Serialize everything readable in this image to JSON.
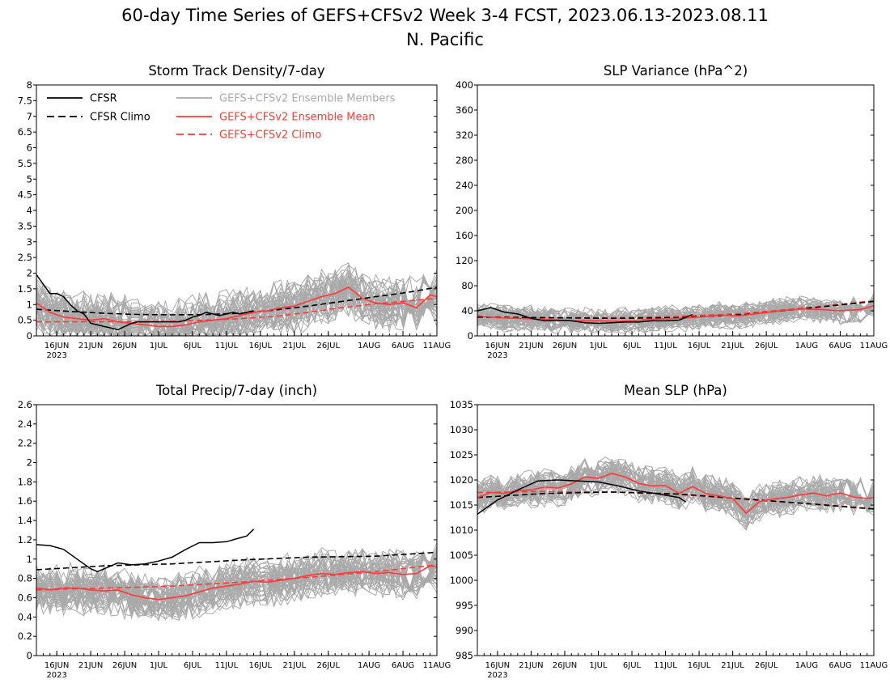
{
  "figure": {
    "title_line1": "60-day Time Series of GEFS+CFSv2 Week 3-4 FCST, 2023.06.13-2023.08.11",
    "title_line2": "N. Pacific",
    "colors": {
      "cfsr": "#000000",
      "members": "#a9a9a9",
      "ens_mean": "#ff3b3b",
      "gefs_climo": "#ff3b3b"
    }
  },
  "chart_data": [
    {
      "id": "storm",
      "type": "line",
      "title": "Storm Track Density/7-day",
      "xlabel": "",
      "ylabel": "",
      "x_range_days": [
        0,
        59
      ],
      "x_ticks": [
        {
          "day": 3,
          "label": "16JUN"
        },
        {
          "day": 8,
          "label": "21JUN"
        },
        {
          "day": 13,
          "label": "26JUN"
        },
        {
          "day": 18,
          "label": "1JUL"
        },
        {
          "day": 23,
          "label": "6JUL"
        },
        {
          "day": 28,
          "label": "11JUL"
        },
        {
          "day": 33,
          "label": "16JUL"
        },
        {
          "day": 38,
          "label": "21JUL"
        },
        {
          "day": 43,
          "label": "26JUL"
        },
        {
          "day": 49,
          "label": "1AUG"
        },
        {
          "day": 54,
          "label": "6AUG"
        },
        {
          "day": 59,
          "label": "11AUG"
        }
      ],
      "year_label": "2023",
      "ylim": [
        0,
        8
      ],
      "y_ticks": [
        0,
        0.5,
        1,
        1.5,
        2,
        2.5,
        3,
        3.5,
        4,
        4.5,
        5,
        5.5,
        6,
        6.5,
        7,
        7.5,
        8
      ],
      "legend": {
        "cfsr": "CFSR",
        "cfsr_climo": "CFSR Climo",
        "members": "GEFS+CFSv2 Ensemble Members",
        "ens_mean": "GEFS+CFSv2 Ensemble Mean",
        "gefs_climo": "GEFS+CFSv2 Climo"
      },
      "members_spread": {
        "count": 40,
        "center_from": "ens_mean",
        "spread": 0.75,
        "floor": 0
      },
      "series": [
        {
          "key": "cfsr",
          "name": "CFSR",
          "x": [
            0,
            1,
            2,
            3,
            4,
            5,
            6,
            7,
            8,
            9,
            10,
            11,
            12,
            13,
            14,
            15,
            16,
            17,
            18,
            19,
            20,
            21,
            22,
            23,
            24,
            25,
            26,
            27,
            28,
            29,
            30,
            31,
            32
          ],
          "values": [
            1.95,
            1.65,
            1.35,
            1.35,
            1.25,
            1.0,
            0.8,
            0.7,
            0.4,
            0.35,
            0.3,
            0.25,
            0.2,
            0.3,
            0.4,
            0.45,
            0.45,
            0.45,
            0.45,
            0.45,
            0.45,
            0.45,
            0.5,
            0.6,
            0.65,
            0.75,
            0.7,
            0.65,
            0.7,
            0.75,
            0.7,
            0.75,
            0.8
          ]
        },
        {
          "key": "cfsr_climo",
          "name": "CFSR Climo",
          "x": [
            0,
            5,
            10,
            15,
            20,
            25,
            30,
            35,
            40,
            45,
            50,
            55,
            59
          ],
          "values": [
            0.85,
            0.78,
            0.72,
            0.68,
            0.67,
            0.68,
            0.72,
            0.82,
            0.95,
            1.1,
            1.25,
            1.4,
            1.55
          ]
        },
        {
          "key": "ens_mean",
          "name": "GEFS+CFSv2 Ensemble Mean",
          "x": [
            0,
            2,
            4,
            6,
            8,
            10,
            12,
            14,
            16,
            18,
            20,
            22,
            24,
            26,
            28,
            30,
            32,
            34,
            36,
            38,
            40,
            42,
            44,
            46,
            48,
            50,
            52,
            54,
            56,
            58,
            59
          ],
          "values": [
            1.05,
            0.75,
            0.6,
            0.55,
            0.5,
            0.55,
            0.45,
            0.4,
            0.35,
            0.3,
            0.3,
            0.35,
            0.45,
            0.5,
            0.55,
            0.65,
            0.75,
            0.8,
            0.9,
            0.95,
            1.1,
            1.25,
            1.35,
            1.55,
            1.2,
            1.05,
            1.0,
            1.05,
            0.9,
            1.3,
            1.25
          ]
        },
        {
          "key": "gefs_climo",
          "name": "GEFS+CFSv2 Climo",
          "x": [
            0,
            5,
            10,
            15,
            20,
            25,
            30,
            35,
            40,
            45,
            50,
            55,
            59
          ],
          "values": [
            0.45,
            0.45,
            0.45,
            0.45,
            0.47,
            0.5,
            0.55,
            0.62,
            0.75,
            0.9,
            1.02,
            1.12,
            1.2
          ]
        }
      ]
    },
    {
      "id": "slpvar",
      "type": "line",
      "title": "SLP Variance (hPa^2)",
      "xlabel": "",
      "ylabel": "",
      "x_range_days": [
        0,
        59
      ],
      "x_ticks": [
        {
          "day": 3,
          "label": "16JUN"
        },
        {
          "day": 8,
          "label": "21JUN"
        },
        {
          "day": 13,
          "label": "26JUN"
        },
        {
          "day": 18,
          "label": "1JUL"
        },
        {
          "day": 23,
          "label": "6JUL"
        },
        {
          "day": 28,
          "label": "11JUL"
        },
        {
          "day": 33,
          "label": "16JUL"
        },
        {
          "day": 38,
          "label": "21JUL"
        },
        {
          "day": 43,
          "label": "26JUL"
        },
        {
          "day": 49,
          "label": "1AUG"
        },
        {
          "day": 54,
          "label": "6AUG"
        },
        {
          "day": 59,
          "label": "11AUG"
        }
      ],
      "year_label": "2023",
      "ylim": [
        0,
        400
      ],
      "y_ticks": [
        0,
        40,
        80,
        120,
        160,
        200,
        240,
        280,
        320,
        360,
        400
      ],
      "members_spread": {
        "count": 40,
        "center_from": "ens_mean",
        "spread": 18,
        "floor": 0
      },
      "series": [
        {
          "key": "cfsr",
          "name": "CFSR",
          "x": [
            0,
            2,
            4,
            6,
            8,
            10,
            12,
            14,
            16,
            18,
            20,
            22,
            24,
            26,
            28,
            30,
            32
          ],
          "values": [
            40,
            45,
            38,
            35,
            28,
            24,
            25,
            24,
            21,
            20,
            21,
            22,
            22,
            24,
            24,
            25,
            34
          ]
        },
        {
          "key": "cfsr_climo",
          "name": "CFSR Climo",
          "x": [
            0,
            10,
            20,
            30,
            40,
            50,
            59
          ],
          "values": [
            30,
            29,
            28,
            29,
            34,
            45,
            55
          ]
        },
        {
          "key": "ens_mean",
          "name": "GEFS+CFSv2 Ensemble Mean",
          "x": [
            0,
            3,
            6,
            9,
            12,
            15,
            18,
            21,
            24,
            27,
            30,
            33,
            36,
            39,
            42,
            45,
            48,
            51,
            54,
            57,
            59
          ],
          "values": [
            32,
            29,
            28,
            27,
            25,
            24,
            24,
            23,
            25,
            27,
            28,
            30,
            33,
            32,
            36,
            40,
            43,
            42,
            40,
            42,
            48
          ]
        },
        {
          "key": "gefs_climo",
          "name": "GEFS+CFSv2 Climo",
          "x": [
            0,
            10,
            20,
            30,
            40,
            50,
            59
          ],
          "values": [
            30,
            29,
            29,
            31,
            36,
            46,
            56
          ]
        }
      ]
    },
    {
      "id": "precip",
      "type": "line",
      "title": "Total Precip/7-day (inch)",
      "xlabel": "",
      "ylabel": "",
      "x_range_days": [
        0,
        59
      ],
      "x_ticks": [
        {
          "day": 3,
          "label": "16JUN"
        },
        {
          "day": 8,
          "label": "21JUN"
        },
        {
          "day": 13,
          "label": "26JUN"
        },
        {
          "day": 18,
          "label": "1JUL"
        },
        {
          "day": 23,
          "label": "6JUL"
        },
        {
          "day": 28,
          "label": "11JUL"
        },
        {
          "day": 33,
          "label": "16JUL"
        },
        {
          "day": 38,
          "label": "21JUL"
        },
        {
          "day": 43,
          "label": "26JUL"
        },
        {
          "day": 49,
          "label": "1AUG"
        },
        {
          "day": 54,
          "label": "6AUG"
        },
        {
          "day": 59,
          "label": "11AUG"
        }
      ],
      "year_label": "2023",
      "ylim": [
        0,
        2.6
      ],
      "y_ticks": [
        0,
        0.2,
        0.4,
        0.6,
        0.8,
        1,
        1.2,
        1.4,
        1.6,
        1.8,
        2,
        2.2,
        2.4,
        2.6
      ],
      "members_spread": {
        "count": 40,
        "center_from": "ens_mean",
        "spread": 0.22,
        "floor": 0
      },
      "series": [
        {
          "key": "cfsr",
          "name": "CFSR",
          "x": [
            0,
            2,
            4,
            6,
            8,
            9,
            10,
            12,
            14,
            16,
            18,
            20,
            22,
            24,
            26,
            28,
            30,
            31,
            32
          ],
          "values": [
            1.15,
            1.14,
            1.1,
            1.0,
            0.9,
            0.87,
            0.9,
            0.96,
            0.94,
            0.95,
            0.98,
            1.02,
            1.1,
            1.17,
            1.17,
            1.18,
            1.22,
            1.24,
            1.31
          ]
        },
        {
          "key": "cfsr_climo",
          "name": "CFSR Climo",
          "x": [
            0,
            10,
            20,
            30,
            40,
            50,
            59
          ],
          "values": [
            0.89,
            0.93,
            0.95,
            0.99,
            1.02,
            1.03,
            1.07
          ]
        },
        {
          "key": "ens_mean",
          "name": "GEFS+CFSv2 Ensemble Mean",
          "x": [
            0,
            2,
            4,
            6,
            8,
            10,
            12,
            14,
            16,
            18,
            20,
            22,
            24,
            26,
            28,
            30,
            32,
            34,
            36,
            38,
            40,
            42,
            44,
            46,
            48,
            50,
            52,
            54,
            56,
            58,
            59
          ],
          "values": [
            0.7,
            0.68,
            0.7,
            0.7,
            0.68,
            0.67,
            0.68,
            0.63,
            0.6,
            0.58,
            0.6,
            0.62,
            0.66,
            0.7,
            0.72,
            0.74,
            0.77,
            0.76,
            0.78,
            0.8,
            0.83,
            0.85,
            0.84,
            0.86,
            0.87,
            0.85,
            0.86,
            0.84,
            0.85,
            0.93,
            0.92
          ]
        },
        {
          "key": "gefs_climo",
          "name": "GEFS+CFSv2 Climo",
          "x": [
            0,
            10,
            20,
            30,
            40,
            50,
            59
          ],
          "values": [
            0.68,
            0.7,
            0.72,
            0.76,
            0.81,
            0.87,
            0.94
          ]
        }
      ]
    },
    {
      "id": "mslp",
      "type": "line",
      "title": "Mean SLP (hPa)",
      "xlabel": "",
      "ylabel": "",
      "x_range_days": [
        0,
        59
      ],
      "x_ticks": [
        {
          "day": 3,
          "label": "16JUN"
        },
        {
          "day": 8,
          "label": "21JUN"
        },
        {
          "day": 13,
          "label": "26JUN"
        },
        {
          "day": 18,
          "label": "1JUL"
        },
        {
          "day": 23,
          "label": "6JUL"
        },
        {
          "day": 28,
          "label": "11JUL"
        },
        {
          "day": 33,
          "label": "16JUL"
        },
        {
          "day": 38,
          "label": "21JUL"
        },
        {
          "day": 43,
          "label": "26JUL"
        },
        {
          "day": 49,
          "label": "1AUG"
        },
        {
          "day": 54,
          "label": "6AUG"
        },
        {
          "day": 59,
          "label": "11AUG"
        }
      ],
      "year_label": "2023",
      "ylim": [
        985,
        1035
      ],
      "y_ticks": [
        985,
        990,
        995,
        1000,
        1005,
        1010,
        1015,
        1020,
        1025,
        1030,
        1035
      ],
      "members_spread": {
        "count": 40,
        "center_from": "ens_mean",
        "spread": 3.2,
        "floor": 985
      },
      "series": [
        {
          "key": "cfsr",
          "name": "CFSR",
          "x": [
            0,
            3,
            6,
            9,
            12,
            15,
            18,
            21,
            24,
            27,
            30,
            31
          ],
          "values": [
            1013.2,
            1016,
            1018,
            1019.8,
            1020,
            1019.8,
            1019.6,
            1018.8,
            1017.8,
            1017.2,
            1016.5,
            1015.6
          ]
        },
        {
          "key": "cfsr_climo",
          "name": "CFSR Climo",
          "x": [
            0,
            10,
            20,
            30,
            40,
            50,
            59
          ],
          "values": [
            1016.5,
            1017.3,
            1017.6,
            1017.2,
            1016.2,
            1015.2,
            1014.2
          ]
        },
        {
          "key": "ens_mean",
          "name": "GEFS+CFSv2 Ensemble Mean",
          "x": [
            0,
            2,
            4,
            6,
            8,
            10,
            12,
            14,
            16,
            18,
            20,
            22,
            24,
            26,
            28,
            30,
            32,
            34,
            36,
            38,
            40,
            42,
            44,
            46,
            48,
            50,
            52,
            54,
            56,
            58,
            59
          ],
          "values": [
            1016.5,
            1017.5,
            1017.3,
            1017.9,
            1018,
            1018.6,
            1018.4,
            1019.2,
            1020.6,
            1020.3,
            1021.3,
            1020.6,
            1019.3,
            1018.8,
            1018.9,
            1017.3,
            1018.7,
            1017.3,
            1016.8,
            1016.3,
            1013.4,
            1015.7,
            1016.2,
            1016.5,
            1017.0,
            1017.4,
            1016.8,
            1017.4,
            1016.6,
            1016.3,
            1016.5
          ]
        },
        {
          "key": "gefs_climo",
          "name": "GEFS+CFSv2 Climo",
          "x": [
            0,
            10,
            20,
            30,
            40,
            50,
            59
          ],
          "values": [
            1017.5,
            1017.7,
            1017.6,
            1017.1,
            1016.1,
            1015.2,
            1014.3
          ]
        }
      ]
    }
  ]
}
